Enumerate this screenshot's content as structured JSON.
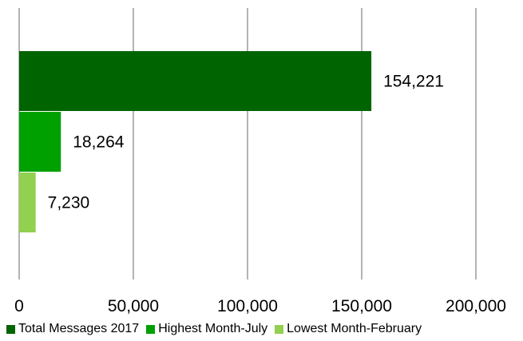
{
  "chart_data": {
    "type": "bar",
    "orientation": "horizontal",
    "series": [
      {
        "name": "Total Messages 2017",
        "value": 154221,
        "label": "154,221",
        "color": "#006400"
      },
      {
        "name": "Highest Month-July",
        "value": 18264,
        "label": "18,264",
        "color": "#00a000"
      },
      {
        "name": "Lowest Month-February",
        "value": 7230,
        "label": "7,230",
        "color": "#92d050"
      }
    ],
    "x_ticks": [
      {
        "value": 0,
        "label": "0"
      },
      {
        "value": 50000,
        "label": "50,000"
      },
      {
        "value": 100000,
        "label": "100,000"
      },
      {
        "value": 150000,
        "label": "150,000"
      },
      {
        "value": 200000,
        "label": "200,000"
      }
    ],
    "xlim": [
      0,
      200000
    ],
    "grid": true,
    "legend_position": "bottom",
    "title": "",
    "xlabel": "",
    "ylabel": ""
  }
}
